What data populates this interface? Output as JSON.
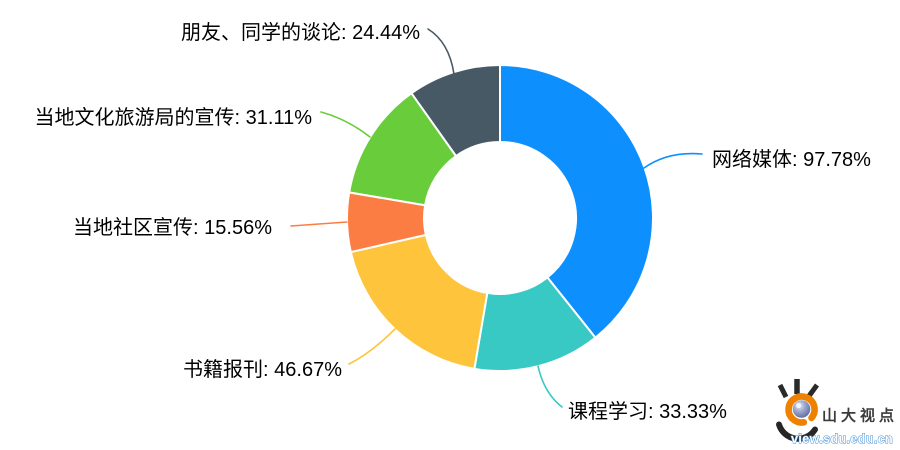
{
  "chart_data": {
    "type": "pie",
    "variant": "donut",
    "title": "",
    "legend_position": "none",
    "label_format": "{name}: {value}%",
    "values_total": 248.89,
    "slices": [
      {
        "label": "网络媒体",
        "value": 97.78,
        "display": "网络媒体: 97.78%",
        "color": "#0d90fe"
      },
      {
        "label": "课程学习",
        "value": 33.33,
        "display": "课程学习: 33.33%",
        "color": "#38c9c4"
      },
      {
        "label": "书籍报刊",
        "value": 46.67,
        "display": "书籍报刊: 46.67%",
        "color": "#fec43c"
      },
      {
        "label": "当地社区宣传",
        "value": 15.56,
        "display": "当地社区宣传: 15.56%",
        "color": "#fc7d44"
      },
      {
        "label": "当地文化旅游局的宣传",
        "value": 31.11,
        "display": "当地文化旅游局的宣传: 31.11%",
        "color": "#69cd3b"
      },
      {
        "label": "朋友、同学的谈论",
        "value": 24.44,
        "display": "朋友、同学的谈论: 24.44%",
        "color": "#475965"
      }
    ]
  },
  "watermark": {
    "brand": "山大视点",
    "url": "view.sdu.edu.cn",
    "colors": {
      "orange": "#ee8100",
      "dark": "#2a2a2a",
      "sphere_light": "#d9dff0",
      "sphere_dark": "#626fa3",
      "url_outline": "#3f8fd8",
      "text": "#3b3b3b"
    }
  }
}
